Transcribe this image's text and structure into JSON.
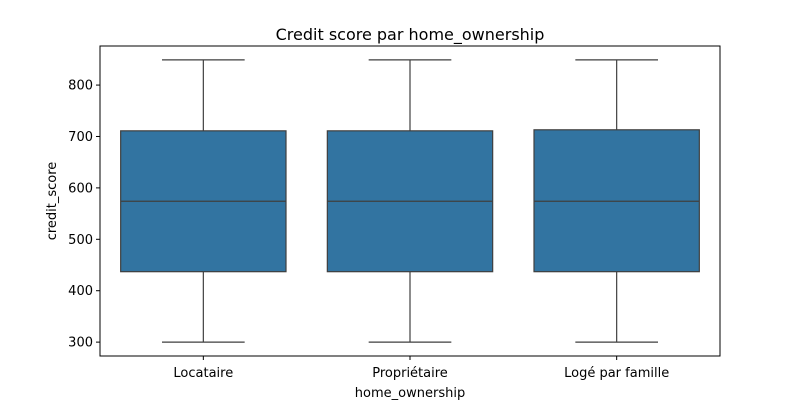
{
  "chart_data": {
    "type": "box",
    "title": "Credit score par home_ownership",
    "xlabel": "home_ownership",
    "ylabel": "credit_score",
    "categories": [
      "Locataire",
      "Propriétaire",
      "Logé par famille"
    ],
    "boxes": [
      {
        "category": "Locataire",
        "min": 300,
        "q1": 437,
        "median": 574,
        "q3": 711,
        "max": 849
      },
      {
        "category": "Propriétaire",
        "min": 300,
        "q1": 437,
        "median": 574,
        "q3": 711,
        "max": 849
      },
      {
        "category": "Logé par famille",
        "min": 300,
        "q1": 437,
        "median": 574,
        "q3": 713,
        "max": 849
      }
    ],
    "ylim": [
      273,
      876
    ],
    "yticks": [
      300,
      400,
      500,
      600,
      700,
      800
    ],
    "grid": false,
    "box_color": "#3274a1",
    "line_color": "#3f3f3f"
  }
}
